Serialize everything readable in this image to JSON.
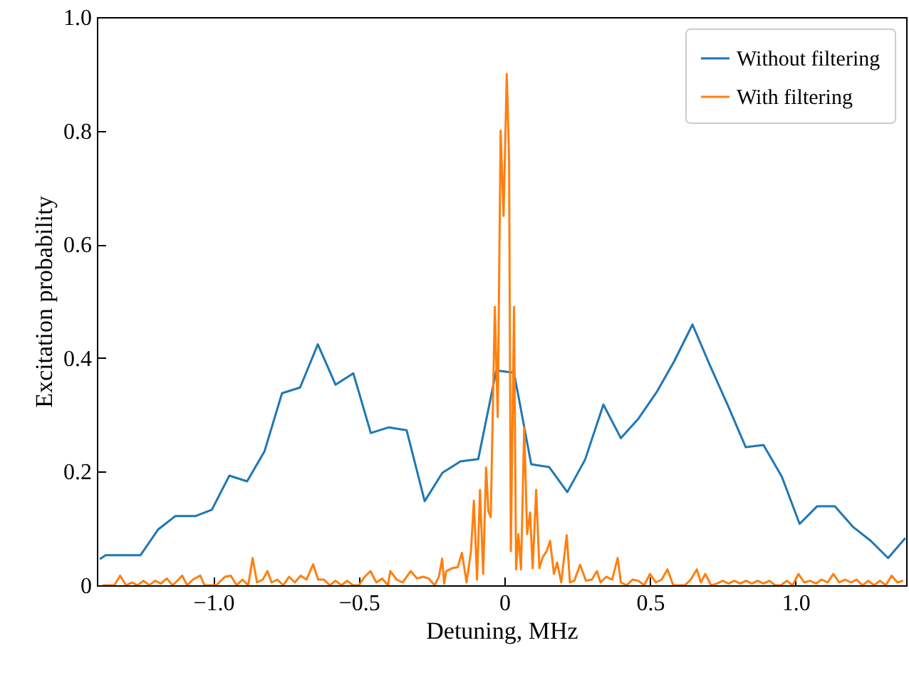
{
  "chart_data": {
    "type": "line",
    "xlabel": "Detuning, MHz",
    "ylabel": "Excitation probability",
    "xlim": [
      -1.4,
      1.38
    ],
    "ylim": [
      0,
      1.0
    ],
    "xticks": [
      {
        "value": -1.0,
        "label": "−1.0"
      },
      {
        "value": -0.5,
        "label": "−0.5"
      },
      0,
      0.5,
      {
        "value": 1.0,
        "label": "1.0"
      }
    ],
    "yticks": [
      0,
      0.2,
      0.4,
      0.6,
      0.8,
      {
        "value": 1.0,
        "label": "1.0"
      }
    ],
    "grid": false,
    "legend": "top right",
    "line_style": "solid",
    "marker": "none",
    "series": [
      {
        "name": "Without filtering",
        "color": "#1f77b4",
        "x": [
          -1.39,
          -1.37,
          -1.25,
          -1.19,
          -1.13,
          -1.06,
          -1.005,
          -0.945,
          -0.884,
          -0.824,
          -0.764,
          -0.702,
          -0.641,
          -0.58,
          -0.519,
          -0.459,
          -0.397,
          -0.336,
          -0.274,
          -0.213,
          -0.151,
          -0.09,
          -0.028,
          0.033,
          0.092,
          0.154,
          0.216,
          0.277,
          0.34,
          0.4,
          0.46,
          0.523,
          0.584,
          0.646,
          0.706,
          0.768,
          0.829,
          0.89,
          0.953,
          1.014,
          1.074,
          1.135,
          1.197,
          1.259,
          1.318,
          1.377
        ],
        "values": [
          0.046,
          0.053,
          0.053,
          0.098,
          0.122,
          0.122,
          0.133,
          0.193,
          0.183,
          0.236,
          0.338,
          0.348,
          0.424,
          0.353,
          0.373,
          0.268,
          0.278,
          0.273,
          0.148,
          0.198,
          0.218,
          0.222,
          0.378,
          0.374,
          0.213,
          0.208,
          0.164,
          0.221,
          0.318,
          0.259,
          0.293,
          0.34,
          0.395,
          0.459,
          0.387,
          0.316,
          0.243,
          0.247,
          0.191,
          0.108,
          0.139,
          0.139,
          0.103,
          0.078,
          0.048,
          0.083
        ]
      },
      {
        "name": "With filtering",
        "color": "#ff7f0e",
        "x": [
          -1.38,
          -1.34,
          -1.32,
          -1.3,
          -1.28,
          -1.26,
          -1.24,
          -1.22,
          -1.2,
          -1.18,
          -1.16,
          -1.14,
          -1.12,
          -1.107,
          -1.09,
          -1.07,
          -1.045,
          -1.03,
          -0.99,
          -0.96,
          -0.94,
          -0.92,
          -0.9,
          -0.88,
          -0.865,
          -0.85,
          -0.83,
          -0.814,
          -0.8,
          -0.78,
          -0.76,
          -0.74,
          -0.72,
          -0.7,
          -0.68,
          -0.657,
          -0.64,
          -0.62,
          -0.6,
          -0.58,
          -0.56,
          -0.54,
          -0.52,
          -0.5,
          -0.48,
          -0.46,
          -0.44,
          -0.42,
          -0.4,
          -0.392,
          -0.37,
          -0.35,
          -0.322,
          -0.3,
          -0.28,
          -0.26,
          -0.24,
          -0.225,
          -0.214,
          -0.207,
          -0.2,
          -0.18,
          -0.16,
          -0.146,
          -0.13,
          -0.115,
          -0.105,
          -0.094,
          -0.084,
          -0.073,
          -0.063,
          -0.055,
          -0.047,
          -0.033,
          -0.023,
          -0.013,
          -0.003,
          0.008,
          0.016,
          0.022,
          0.033,
          0.04,
          0.048,
          0.057,
          0.068,
          0.078,
          0.088,
          0.097,
          0.109,
          0.12,
          0.132,
          0.145,
          0.157,
          0.17,
          0.181,
          0.195,
          0.214,
          0.225,
          0.24,
          0.26,
          0.28,
          0.3,
          0.318,
          0.33,
          0.35,
          0.37,
          0.389,
          0.4,
          0.42,
          0.44,
          0.46,
          0.48,
          0.5,
          0.52,
          0.54,
          0.56,
          0.58,
          0.62,
          0.64,
          0.661,
          0.675,
          0.69,
          0.71,
          0.73,
          0.75,
          0.77,
          0.79,
          0.81,
          0.83,
          0.85,
          0.87,
          0.89,
          0.91,
          0.93,
          0.95,
          0.97,
          0.99,
          1.01,
          1.03,
          1.05,
          1.07,
          1.09,
          1.11,
          1.13,
          1.15,
          1.17,
          1.19,
          1.21,
          1.23,
          1.25,
          1.27,
          1.29,
          1.31,
          1.33,
          1.35,
          1.37
        ],
        "values": [
          0,
          0,
          0.017,
          0,
          0.005,
          0,
          0.008,
          0,
          0.008,
          0.003,
          0.012,
          0,
          0.01,
          0.017,
          0,
          0.01,
          0.017,
          0,
          0,
          0.015,
          0.017,
          0,
          0.01,
          0,
          0.048,
          0.005,
          0.01,
          0.025,
          0.005,
          0.01,
          0,
          0.015,
          0.005,
          0.017,
          0.01,
          0.037,
          0.01,
          0.01,
          0,
          0.008,
          0,
          0.008,
          0,
          0,
          0.015,
          0.025,
          0.005,
          0.012,
          0,
          0.025,
          0.01,
          0.005,
          0.025,
          0.012,
          0.015,
          0.012,
          0,
          0.015,
          0.047,
          0.003,
          0.025,
          0.03,
          0.032,
          0.057,
          0.005,
          0.06,
          0.149,
          0.01,
          0.168,
          0.02,
          0.207,
          0.13,
          0.12,
          0.49,
          0.296,
          0.8,
          0.65,
          0.9,
          0.75,
          0.06,
          0.49,
          0.028,
          0.09,
          0.028,
          0.278,
          0.09,
          0.128,
          0.03,
          0.168,
          0.03,
          0.05,
          0.06,
          0.078,
          0.02,
          0.04,
          0.005,
          0.088,
          0.005,
          0.008,
          0.036,
          0.008,
          0.01,
          0.025,
          0.005,
          0.015,
          0.01,
          0.048,
          0.005,
          0,
          0.01,
          0.008,
          0,
          0.02,
          0.005,
          0.01,
          0.028,
          0,
          0,
          0.01,
          0.028,
          0.005,
          0.02,
          0,
          0.003,
          0.008,
          0.003,
          0.008,
          0.003,
          0.008,
          0.003,
          0.008,
          0.003,
          0.008,
          0,
          0,
          0.008,
          0,
          0.02,
          0.005,
          0.008,
          0.003,
          0.01,
          0.005,
          0.02,
          0.005,
          0.01,
          0.005,
          0.01,
          0,
          0.008,
          0,
          0.008,
          0,
          0.017,
          0.005,
          0.008
        ]
      }
    ]
  }
}
